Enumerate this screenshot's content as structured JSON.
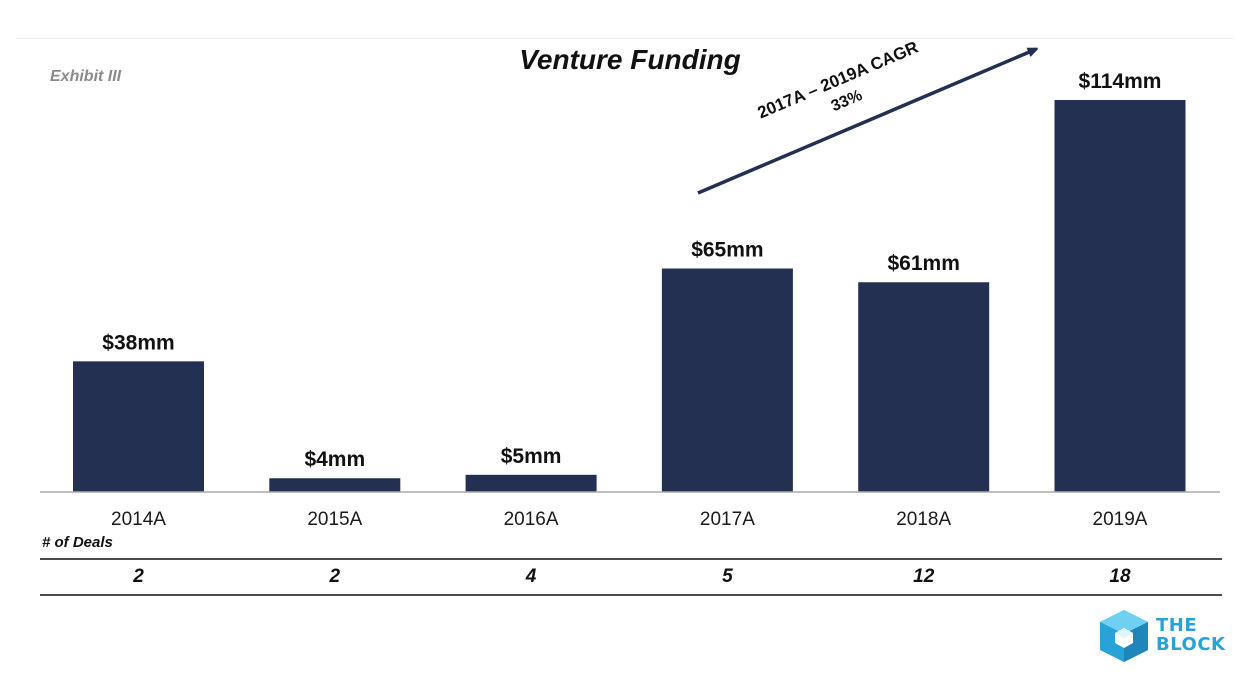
{
  "exhibit_label": "Exhibit III",
  "brand": {
    "line1": "THE",
    "line2": "BLOCK",
    "colors": {
      "primary": "#29a3d7",
      "secondary": "#6fd0f2"
    }
  },
  "chart_data": {
    "type": "bar",
    "title": "Venture Funding",
    "categories": [
      "2014A",
      "2015A",
      "2016A",
      "2017A",
      "2018A",
      "2019A"
    ],
    "series": [
      {
        "values": [
          38,
          4,
          5,
          65,
          61,
          114
        ],
        "color": "#243052"
      }
    ],
    "data_labels": [
      "$38mm",
      "$4mm",
      "$5mm",
      "$65mm",
      "$61mm",
      "$114mm"
    ],
    "ylim": [
      0,
      114
    ],
    "grid": false,
    "annotation": {
      "line1": "2017A – 2019A CAGR",
      "line2": "33%"
    },
    "deals": {
      "label": "# of Deals",
      "values": [
        "2",
        "2",
        "4",
        "5",
        "12",
        "18"
      ]
    }
  }
}
